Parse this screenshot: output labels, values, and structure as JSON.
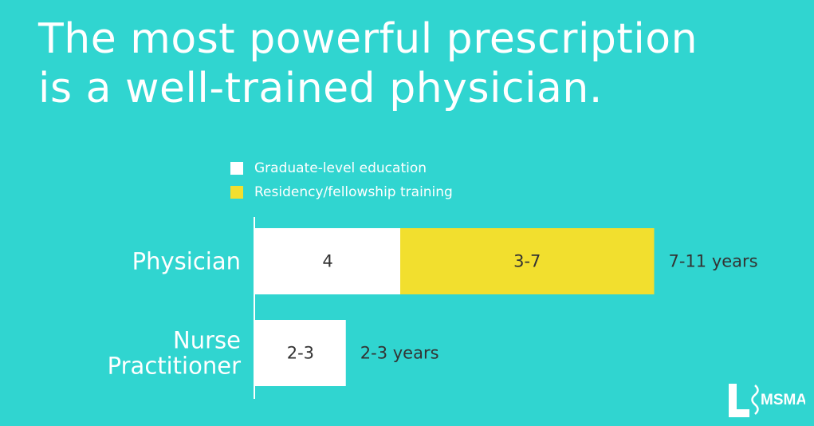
{
  "title": {
    "line1": "The most powerful prescription",
    "line2": "is a well-trained physician."
  },
  "colors": {
    "background": "#30d5d0",
    "graduate": "#ffffff",
    "residency": "#f2df2e",
    "text_dark": "#333333",
    "text_light": "#ffffff"
  },
  "logo": {
    "text": "MSMA"
  },
  "chart_data": {
    "type": "bar",
    "orientation": "horizontal",
    "stacked": true,
    "categories": [
      "Physician",
      "Nurse Practitioner"
    ],
    "series": [
      {
        "name": "Graduate-level education",
        "values": [
          4,
          2.5
        ],
        "labels": [
          "4",
          "2-3"
        ]
      },
      {
        "name": "Residency/fellowship training",
        "values": [
          7,
          0
        ],
        "labels": [
          "3-7",
          ""
        ]
      }
    ],
    "totals": [
      "7-11 years",
      "2-3 years"
    ],
    "legend_position": "top-left",
    "grid": false
  }
}
